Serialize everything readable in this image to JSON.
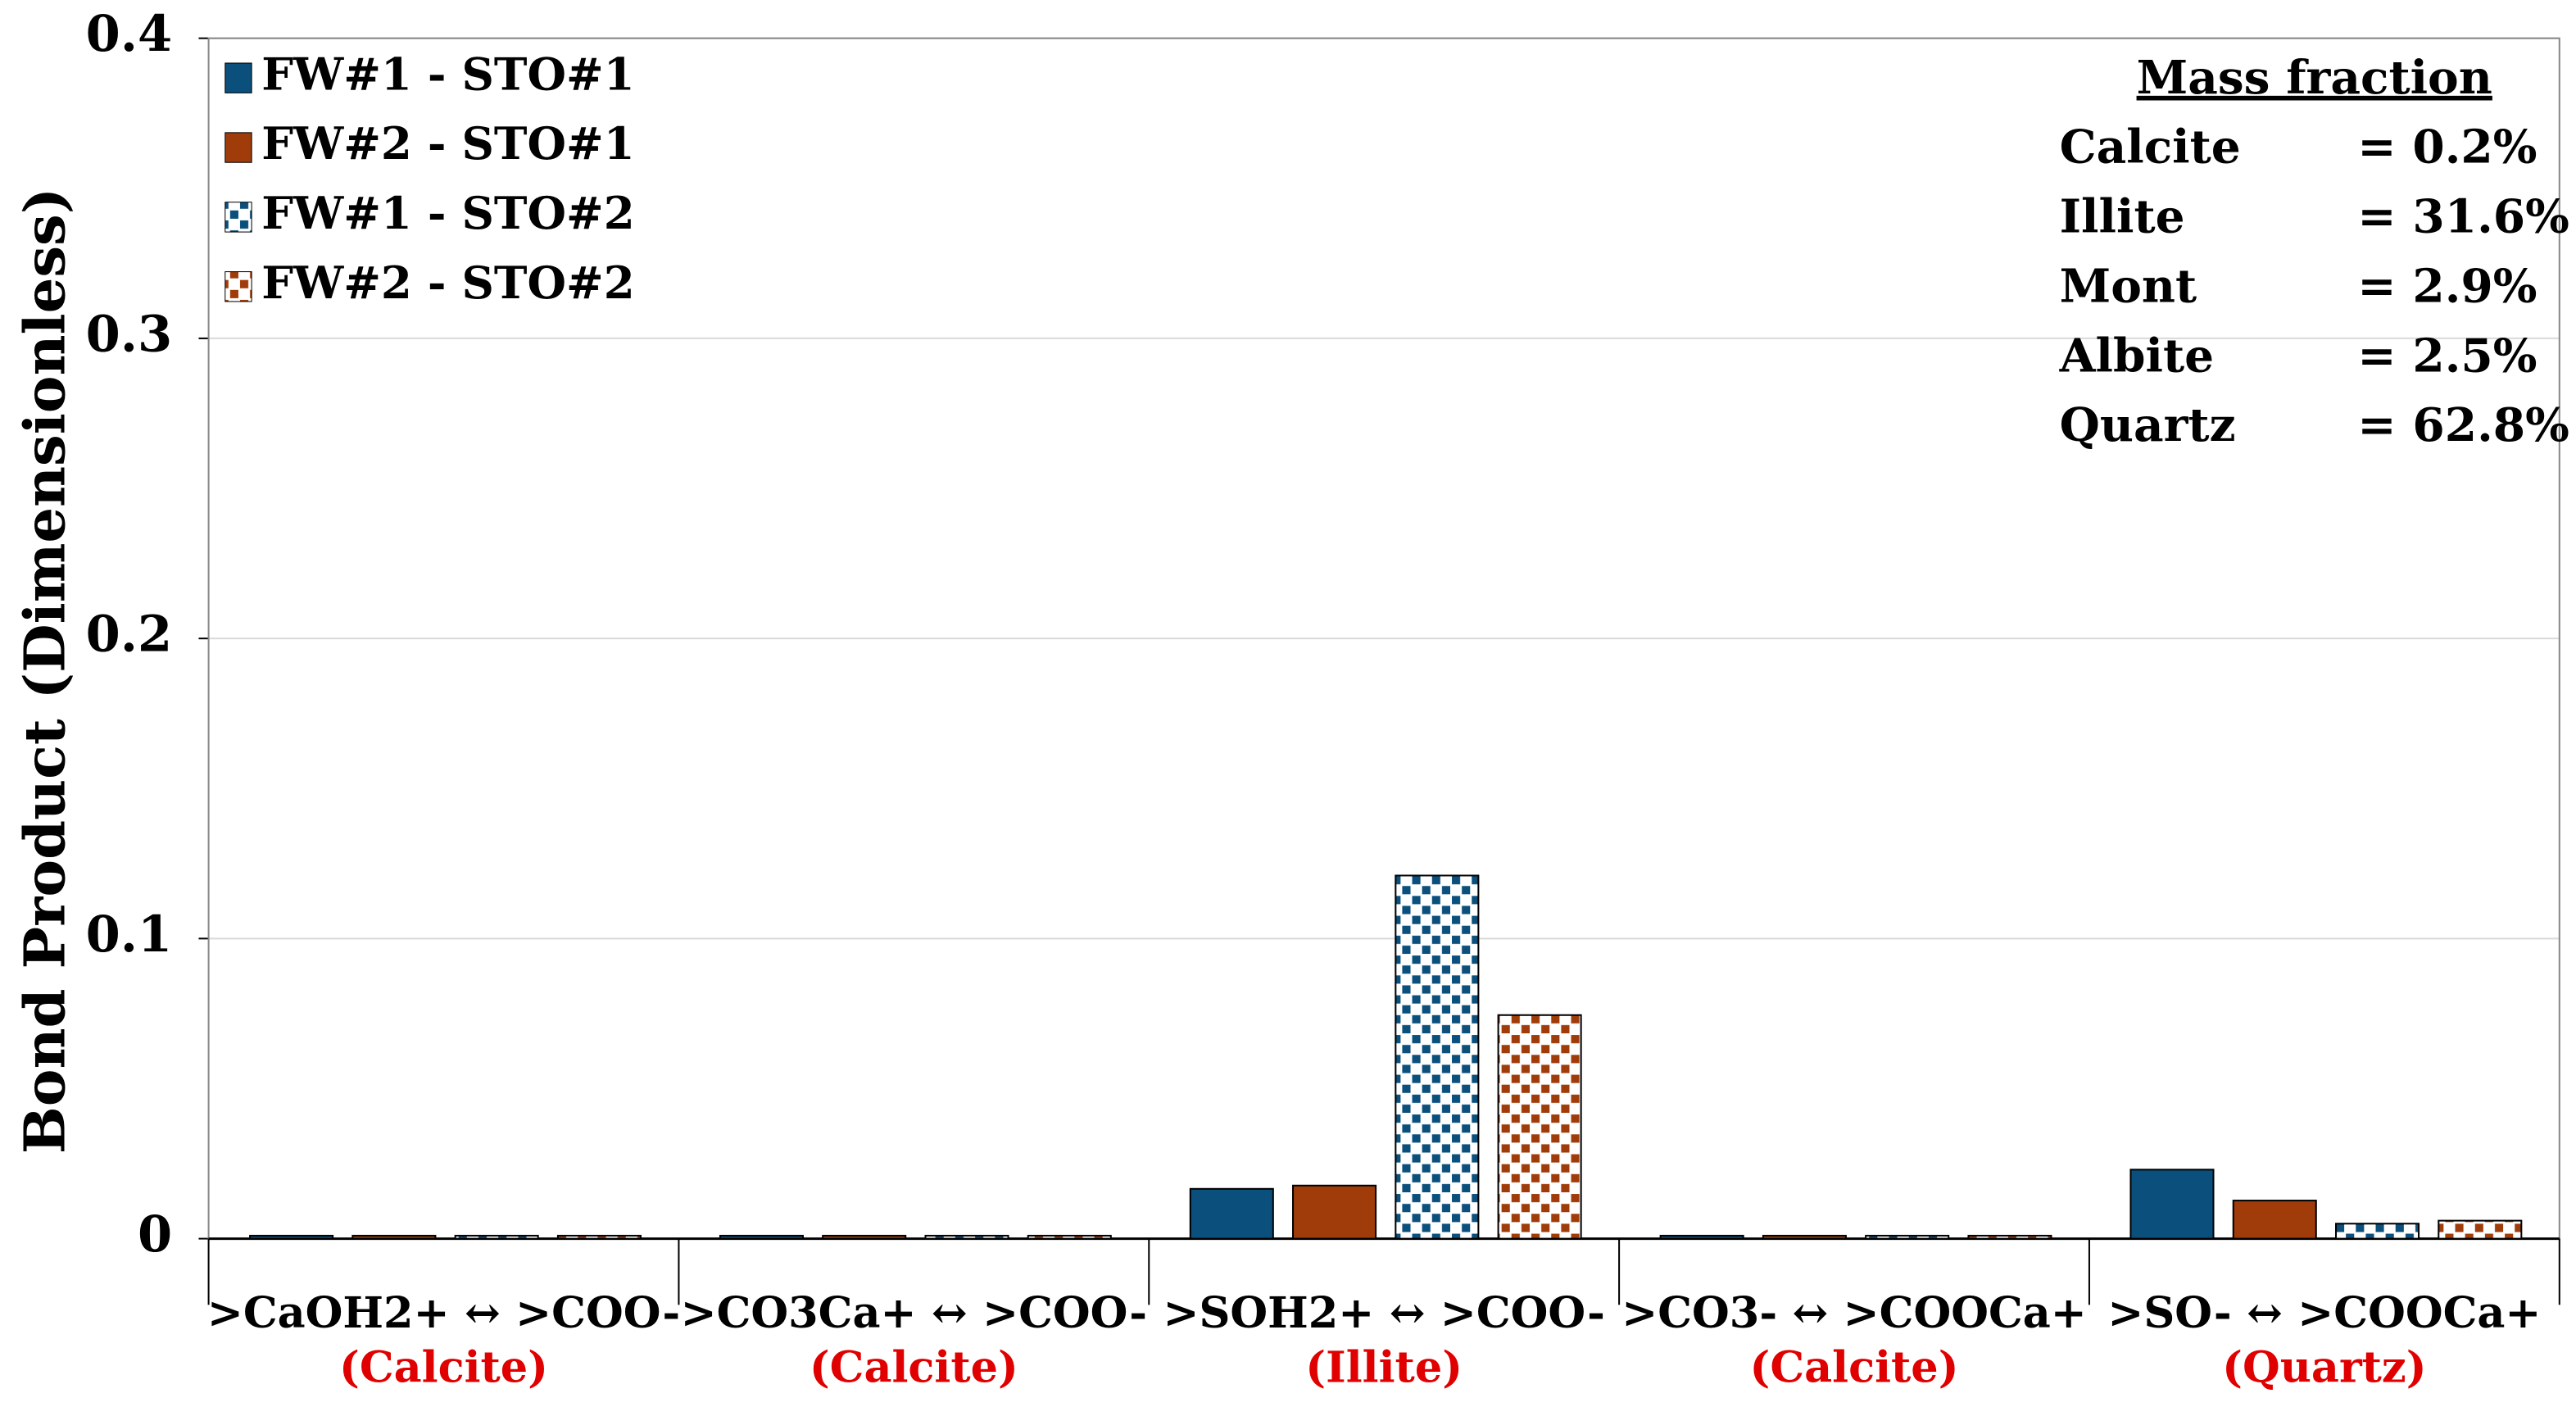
{
  "chart_data": {
    "type": "bar",
    "y_label": "Bond Product  (Dimensionless)",
    "categories": [
      ">CaOH2+ ↔ >COO-",
      ">CO3Ca+  ↔ >COO-",
      ">SOH2+ ↔ >COO-",
      ">CO3- ↔ >COOCa+",
      ">SO- ↔ >COOCa+"
    ],
    "category_sublabels": [
      "(Calcite)",
      "(Calcite)",
      "(Illite)",
      "(Calcite)",
      "(Quartz)"
    ],
    "sublabel_color": "#e00000",
    "series": [
      {
        "name": "FW#1 - STO#1",
        "color": "#0b4f7c",
        "pattern": "solid",
        "values": [
          0.001,
          0.001,
          0.0166,
          0.001,
          0.023
        ]
      },
      {
        "name": "FW#2 - STO#1",
        "color": "#a03c0a",
        "pattern": "solid",
        "values": [
          0.001,
          0.001,
          0.0177,
          0.001,
          0.0127
        ]
      },
      {
        "name": "FW#1 - STO#2",
        "color": "#0b4f7c",
        "pattern": "checker",
        "values": [
          0.001,
          0.001,
          0.121,
          0.001,
          0.005
        ]
      },
      {
        "name": "FW#2 - STO#2",
        "color": "#a03c0a",
        "pattern": "checker",
        "values": [
          0.001,
          0.001,
          0.0745,
          0.001,
          0.006
        ]
      }
    ],
    "ylim": [
      0,
      0.4
    ],
    "yticks": [
      0,
      0.1,
      0.2,
      0.3,
      0.4
    ],
    "grid": true,
    "legend": "top-left",
    "annotation": {
      "title": "Mass fraction",
      "rows": [
        [
          "Calcite",
          "= 0.2%"
        ],
        [
          "Illite",
          "= 31.6%"
        ],
        [
          "Mont",
          "= 2.9%"
        ],
        [
          "Albite",
          "= 2.5%"
        ],
        [
          "Quartz",
          "= 62.8%"
        ]
      ]
    }
  }
}
